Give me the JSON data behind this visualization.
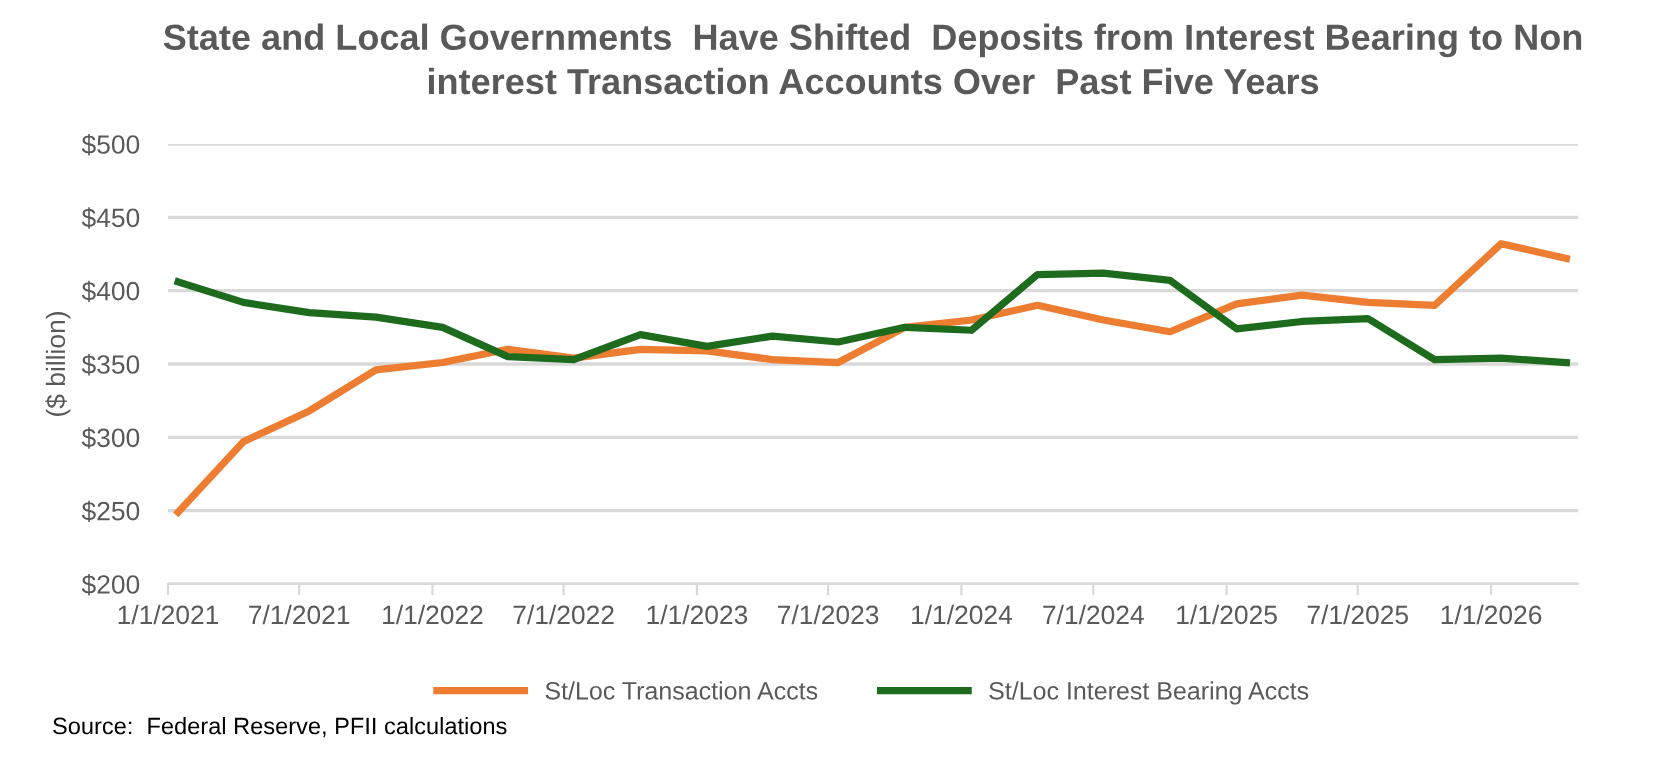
{
  "chart_data": {
    "type": "line",
    "title": "State and Local Governments  Have Shifted  Deposits from Interest Bearing to Non\ninterest Transaction Accounts Over  Past Five Years",
    "ylabel": "($ billion)",
    "x": [
      "2021-01-15",
      "2021-04-15",
      "2021-07-15",
      "2021-10-15",
      "2022-01-15",
      "2022-04-15",
      "2022-07-15",
      "2022-10-15",
      "2023-01-15",
      "2023-04-15",
      "2023-07-15",
      "2023-10-15",
      "2024-01-15",
      "2024-04-15",
      "2024-07-15",
      "2024-10-15",
      "2025-01-15",
      "2025-04-15",
      "2025-07-15",
      "2025-10-15",
      "2026-01-15",
      "2026-04-15"
    ],
    "series": [
      {
        "name": "St/Loc Transaction Accts",
        "color": "#ed7d31",
        "values": [
          249,
          297,
          318,
          346,
          351,
          360,
          354,
          360,
          359,
          353,
          351,
          375,
          380,
          390,
          380,
          372,
          391,
          397,
          392,
          390,
          432,
          422
        ]
      },
      {
        "name": "St/Loc Interest Bearing Accts",
        "color": "#1e6b1e",
        "values": [
          406,
          392,
          385,
          382,
          375,
          355,
          353,
          370,
          362,
          369,
          365,
          375,
          373,
          411,
          412,
          407,
          374,
          379,
          381,
          353,
          354,
          351
        ]
      }
    ],
    "xlim": [
      "2021-01-01",
      "2026-05-01"
    ],
    "xticks": [
      {
        "value": "2021-01-01",
        "label": "1/1/2021"
      },
      {
        "value": "2021-07-01",
        "label": "7/1/2021"
      },
      {
        "value": "2022-01-01",
        "label": "1/1/2022"
      },
      {
        "value": "2022-07-01",
        "label": "7/1/2022"
      },
      {
        "value": "2023-01-01",
        "label": "1/1/2023"
      },
      {
        "value": "2023-07-01",
        "label": "7/1/2023"
      },
      {
        "value": "2024-01-01",
        "label": "1/1/2024"
      },
      {
        "value": "2024-07-01",
        "label": "7/1/2024"
      },
      {
        "value": "2025-01-01",
        "label": "1/1/2025"
      },
      {
        "value": "2025-07-01",
        "label": "7/1/2025"
      },
      {
        "value": "2026-01-01",
        "label": "1/1/2026"
      }
    ],
    "ylim": [
      200,
      500
    ],
    "yticks": [
      {
        "value": 200,
        "label": "$200"
      },
      {
        "value": 250,
        "label": "$250"
      },
      {
        "value": 300,
        "label": "$300"
      },
      {
        "value": 350,
        "label": "$350"
      },
      {
        "value": 400,
        "label": "$400"
      },
      {
        "value": 450,
        "label": "$450"
      },
      {
        "value": 500,
        "label": "$500"
      }
    ],
    "grid": "y",
    "legend": "bottom",
    "marker": "none",
    "line_style": "solid",
    "annotations": [
      "Source:  Federal Reserve, PFII calculations"
    ]
  }
}
